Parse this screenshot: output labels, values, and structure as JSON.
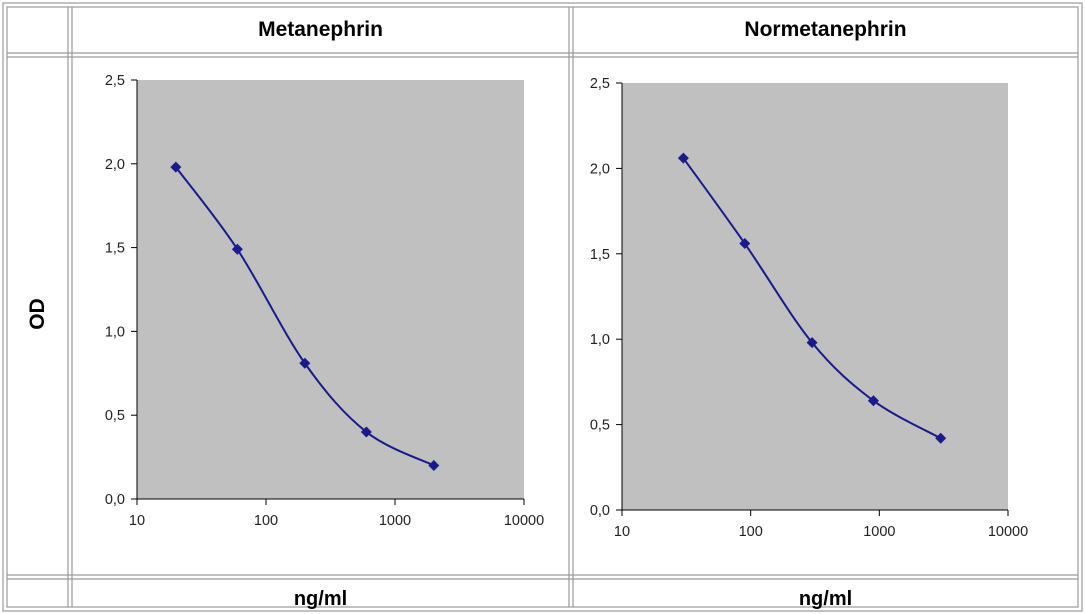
{
  "table": {
    "row_label": "OD",
    "col1_header": "Metanephrin",
    "col2_header": "Normetanephrin",
    "col1_footer": "ng/ml",
    "col2_footer": "ng/ml"
  },
  "colors": {
    "plot_background": "#c0c0c0",
    "series": "#1a1a8c",
    "border": "#9a9a9a"
  },
  "chart_data": [
    {
      "type": "line",
      "title": "Metanephrin",
      "xlabel": "ng/ml",
      "ylabel": "OD",
      "x_scale": "log",
      "xlim": [
        10,
        10000
      ],
      "ylim": [
        0,
        2.5
      ],
      "x_ticks": [
        10,
        100,
        1000,
        10000
      ],
      "x_tick_labels": [
        "10",
        "100",
        "1000",
        "10000"
      ],
      "y_ticks": [
        0,
        0.5,
        1.0,
        1.5,
        2.0,
        2.5
      ],
      "y_tick_labels": [
        "0,0",
        "0,5",
        "1,0",
        "1,5",
        "2,0",
        "2,5"
      ],
      "grid": false,
      "series": [
        {
          "x": [
            20,
            60,
            200,
            600,
            2000
          ],
          "y": [
            1.98,
            1.49,
            0.81,
            0.4,
            0.2
          ]
        }
      ]
    },
    {
      "type": "line",
      "title": "Normetanephrin",
      "xlabel": "ng/ml",
      "ylabel": "OD",
      "x_scale": "log",
      "xlim": [
        10,
        10000
      ],
      "ylim": [
        0,
        2.5
      ],
      "x_ticks": [
        10,
        100,
        1000,
        10000
      ],
      "x_tick_labels": [
        "10",
        "100",
        "1000",
        "10000"
      ],
      "y_ticks": [
        0,
        0.5,
        1.0,
        1.5,
        2.0,
        2.5
      ],
      "y_tick_labels": [
        "0,0",
        "0,5",
        "1,0",
        "1,5",
        "2,0",
        "2,5"
      ],
      "grid": false,
      "series": [
        {
          "x": [
            30,
            90,
            300,
            900,
            3000
          ],
          "y": [
            2.06,
            1.56,
            0.98,
            0.64,
            0.42
          ]
        }
      ]
    }
  ]
}
